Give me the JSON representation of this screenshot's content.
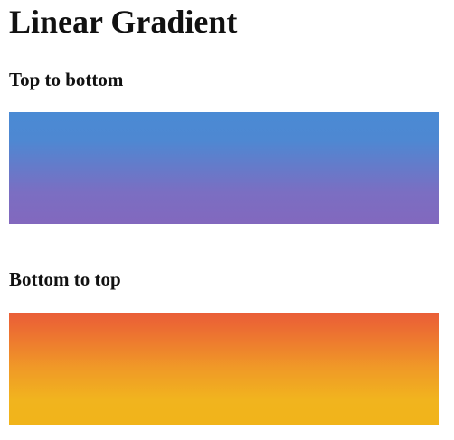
{
  "page": {
    "title": "Linear Gradient"
  },
  "sections": [
    {
      "heading": "Top to bottom",
      "gradient": {
        "direction": "top-to-bottom",
        "start_color": "#4a8ad4",
        "end_color": "#8268be"
      }
    },
    {
      "heading": "Bottom to top",
      "gradient": {
        "direction": "bottom-to-top",
        "start_color": "#f1b41a",
        "end_color": "#ea5e38"
      }
    }
  ]
}
